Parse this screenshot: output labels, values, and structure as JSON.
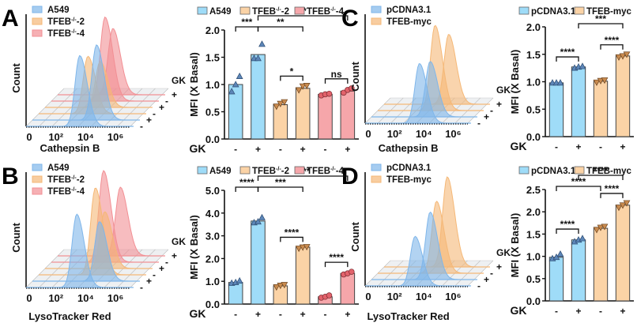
{
  "figure": {
    "panels": [
      "A",
      "B",
      "C",
      "D"
    ]
  },
  "chart_data": [
    {
      "panel": "A",
      "type": "area",
      "subtype": "3d-stacked-flow-histogram",
      "xlabel": "Cathepsin B",
      "ylabel": "Count",
      "x_ticks": [
        "0",
        "10²",
        "10⁴",
        "10⁶"
      ],
      "depth_label": "GK",
      "depth_ticks": [
        "-",
        "+",
        "-",
        "+",
        "-",
        "+"
      ],
      "legend": [
        {
          "name": "A549",
          "color": "#7fb6ea"
        },
        {
          "name": "TFEB-/--2",
          "color": "#f5b877"
        },
        {
          "name": "TFEB-/--4",
          "color": "#f28f94"
        }
      ],
      "traces": [
        {
          "group": "A549",
          "gk": "-",
          "peak_log10": 3.6,
          "height": 0.8
        },
        {
          "group": "A549",
          "gk": "+",
          "peak_log10": 4.3,
          "height": 0.85
        },
        {
          "group": "TFEB-/--2",
          "gk": "-",
          "peak_log10": 3.3,
          "height": 0.65
        },
        {
          "group": "TFEB-/--2",
          "gk": "+",
          "peak_log10": 3.7,
          "height": 0.52
        },
        {
          "group": "TFEB-/--4",
          "gk": "-",
          "peak_log10": 3.6,
          "height": 0.95
        },
        {
          "group": "TFEB-/--4",
          "gk": "+",
          "peak_log10": 3.7,
          "height": 0.75
        }
      ]
    },
    {
      "panel": "A",
      "type": "bar",
      "ylabel": "MFI (X Basal)",
      "xlabel": "GK",
      "categories": [
        "-",
        "+",
        "-",
        "+",
        "-",
        "+"
      ],
      "groups": [
        "A549",
        "A549",
        "TFEB-/--2",
        "TFEB-/--2",
        "TFEB-/--4",
        "TFEB-/--4"
      ],
      "values": [
        1.0,
        1.55,
        0.63,
        0.93,
        0.82,
        0.88
      ],
      "points": [
        [
          0.87,
          1.0,
          1.15
        ],
        [
          1.48,
          1.48,
          1.74
        ],
        [
          0.6,
          0.65,
          0.68
        ],
        [
          0.9,
          0.97,
          0.98
        ],
        [
          0.8,
          0.82,
          0.83
        ],
        [
          0.85,
          0.9,
          0.93
        ]
      ],
      "markers": [
        "triangle-up",
        "triangle-up",
        "triangle-down",
        "triangle-down",
        "circle",
        "circle"
      ],
      "ylim": [
        0,
        2.0
      ],
      "y_ticks": [
        "0.0",
        "0.5",
        "1.0",
        "1.5",
        "2.0"
      ],
      "legend": [
        {
          "name": "A549",
          "color": "#9fdcf8"
        },
        {
          "name": "TFEB-/--2",
          "color": "#fbd3a6"
        },
        {
          "name": "TFEB-/--4",
          "color": "#f6a6aa"
        }
      ],
      "significance": [
        {
          "from": 0,
          "to": 1,
          "label": "***",
          "level": 1
        },
        {
          "from": 1,
          "to": 3,
          "label": "**",
          "level": 1
        },
        {
          "from": 1,
          "to": 5,
          "label": "**",
          "level": 2
        },
        {
          "from": 2,
          "to": 3,
          "label": "*",
          "level": 0
        },
        {
          "from": 4,
          "to": 5,
          "label": "ns",
          "level": 0
        }
      ]
    },
    {
      "panel": "B",
      "type": "area",
      "subtype": "3d-stacked-flow-histogram",
      "xlabel": "LysoTracker Red",
      "ylabel": "Count",
      "x_ticks": [
        "0",
        "10²",
        "10⁴",
        "10⁶"
      ],
      "depth_label": "GK",
      "depth_ticks": [
        "-",
        "+",
        "-",
        "+",
        "-",
        "+"
      ],
      "legend": [
        {
          "name": "A549",
          "color": "#7fb6ea"
        },
        {
          "name": "TFEB-/--2",
          "color": "#f5b877"
        },
        {
          "name": "TFEB-/--4",
          "color": "#f28f94"
        }
      ],
      "traces": [
        {
          "group": "A549",
          "gk": "-",
          "peak_log10": 3.4,
          "height": 0.8
        },
        {
          "group": "A549",
          "gk": "+",
          "peak_log10": 4.5,
          "height": 0.65
        },
        {
          "group": "TFEB-/--2",
          "gk": "-",
          "peak_log10": 3.8,
          "height": 0.95
        },
        {
          "group": "TFEB-/--2",
          "gk": "+",
          "peak_log10": 4.0,
          "height": 0.62
        },
        {
          "group": "TFEB-/--4",
          "gk": "-",
          "peak_log10": 3.5,
          "height": 1.0
        },
        {
          "group": "TFEB-/--4",
          "gk": "+",
          "peak_log10": 4.2,
          "height": 0.75
        }
      ]
    },
    {
      "panel": "B",
      "type": "bar",
      "ylabel": "MFI (X Basal)",
      "xlabel": "GK",
      "categories": [
        "-",
        "+",
        "-",
        "+",
        "-",
        "+"
      ],
      "groups": [
        "A549",
        "A549",
        "TFEB-/--2",
        "TFEB-/--2",
        "TFEB-/--4",
        "TFEB-/--4"
      ],
      "values": [
        0.95,
        3.65,
        0.8,
        2.5,
        0.32,
        1.35
      ],
      "points": [
        [
          0.92,
          0.95,
          1.02
        ],
        [
          3.58,
          3.62,
          3.8
        ],
        [
          0.75,
          0.82,
          0.85
        ],
        [
          2.45,
          2.5,
          2.52
        ],
        [
          0.28,
          0.32,
          0.38
        ],
        [
          1.3,
          1.35,
          1.42
        ]
      ],
      "markers": [
        "triangle-up",
        "triangle-up",
        "triangle-down",
        "triangle-down",
        "circle",
        "circle"
      ],
      "ylim": [
        0,
        5.0
      ],
      "y_ticks": [
        "0.0",
        "1.0",
        "2.0",
        "3.0",
        "4.0",
        "5.0"
      ],
      "legend": [
        {
          "name": "A549",
          "color": "#9fdcf8"
        },
        {
          "name": "TFEB-/--2",
          "color": "#fbd3a6"
        },
        {
          "name": "TFEB-/--4",
          "color": "#f6a6aa"
        }
      ],
      "significance": [
        {
          "from": 0,
          "to": 1,
          "label": "****",
          "level": 1
        },
        {
          "from": 1,
          "to": 3,
          "label": "***",
          "level": 1
        },
        {
          "from": 1,
          "to": 5,
          "label": "****",
          "level": 2
        },
        {
          "from": 2,
          "to": 3,
          "label": "****",
          "level": 0
        },
        {
          "from": 4,
          "to": 5,
          "label": "****",
          "level": 0
        }
      ]
    },
    {
      "panel": "C",
      "type": "area",
      "subtype": "3d-stacked-flow-histogram",
      "xlabel": "Cathepsin B",
      "ylabel": "Count",
      "x_ticks": [
        "0",
        "10²",
        "10⁴",
        "10⁶"
      ],
      "depth_label": "GK",
      "depth_ticks": [
        "-",
        "+",
        "-",
        "+"
      ],
      "legend": [
        {
          "name": "pCDNA3.1",
          "color": "#7fb6ea"
        },
        {
          "name": "TFEB-myc",
          "color": "#f5b877"
        }
      ],
      "traces": [
        {
          "group": "pCDNA3.1",
          "gk": "-",
          "peak_log10": 3.7,
          "height": 0.7
        },
        {
          "group": "pCDNA3.1",
          "gk": "+",
          "peak_log10": 4.0,
          "height": 0.65
        },
        {
          "group": "TFEB-myc",
          "gk": "-",
          "peak_log10": 3.9,
          "height": 1.0
        },
        {
          "group": "TFEB-myc",
          "gk": "+",
          "peak_log10": 4.4,
          "height": 0.82
        }
      ]
    },
    {
      "panel": "C",
      "type": "bar",
      "ylabel": "MFI (X Basal)",
      "xlabel": "GK",
      "categories": [
        "-",
        "+",
        "-",
        "+"
      ],
      "groups": [
        "pCDNA3.1",
        "pCDNA3.1",
        "TFEB-myc",
        "TFEB-myc"
      ],
      "values": [
        0.98,
        1.27,
        1.01,
        1.47
      ],
      "points": [
        [
          0.98,
          0.98,
          0.98
        ],
        [
          1.25,
          1.27,
          1.28
        ],
        [
          0.99,
          1.02,
          1.03
        ],
        [
          1.45,
          1.47,
          1.5
        ]
      ],
      "markers": [
        "triangle-up",
        "triangle-up",
        "triangle-down",
        "triangle-down"
      ],
      "ylim": [
        0,
        2.0
      ],
      "y_ticks": [
        "0.0",
        "0.5",
        "1.0",
        "1.5",
        "2.0"
      ],
      "legend": [
        {
          "name": "pCDNA3.1",
          "color": "#9fdcf8"
        },
        {
          "name": "TFEB-myc",
          "color": "#fbd3a6"
        }
      ],
      "significance": [
        {
          "from": 0,
          "to": 1,
          "label": "****",
          "level": 0
        },
        {
          "from": 2,
          "to": 3,
          "label": "****",
          "level": 0
        },
        {
          "from": 1,
          "to": 3,
          "label": "***",
          "level": 1
        }
      ]
    },
    {
      "panel": "D",
      "type": "area",
      "subtype": "3d-stacked-flow-histogram",
      "xlabel": "LysoTracker Red",
      "ylabel": "Count",
      "x_ticks": [
        "0",
        "10²",
        "10⁴",
        "10⁶"
      ],
      "depth_label": "GK",
      "depth_ticks": [
        "-",
        "+",
        "-",
        "+"
      ],
      "legend": [
        {
          "name": "pCDNA3.1",
          "color": "#7fb6ea"
        },
        {
          "name": "TFEB-myc",
          "color": "#f5b877"
        }
      ],
      "traces": [
        {
          "group": "pCDNA3.1",
          "gk": "-",
          "peak_log10": 3.4,
          "height": 0.55
        },
        {
          "group": "pCDNA3.1",
          "gk": "+",
          "peak_log10": 4.0,
          "height": 0.75
        },
        {
          "group": "TFEB-myc",
          "gk": "-",
          "peak_log10": 4.0,
          "height": 0.8
        },
        {
          "group": "TFEB-myc",
          "gk": "+",
          "peak_log10": 4.3,
          "height": 1.0
        }
      ]
    },
    {
      "panel": "D",
      "type": "bar",
      "ylabel": "MFI (X Basal)",
      "xlabel": "GK",
      "categories": [
        "-",
        "+",
        "-",
        "+"
      ],
      "groups": [
        "pCDNA3.1",
        "pCDNA3.1",
        "TFEB-myc",
        "TFEB-myc"
      ],
      "values": [
        0.98,
        1.37,
        1.63,
        2.15
      ],
      "points": [
        [
          0.95,
          0.98,
          1.05
        ],
        [
          1.33,
          1.37,
          1.4
        ],
        [
          1.6,
          1.65,
          1.67
        ],
        [
          2.1,
          2.15,
          2.2
        ]
      ],
      "markers": [
        "triangle-up",
        "triangle-up",
        "triangle-down",
        "triangle-down"
      ],
      "ylim": [
        0,
        2.5
      ],
      "y_ticks": [
        "0.0",
        "0.5",
        "1.0",
        "1.5",
        "2.0",
        "2.5"
      ],
      "legend": [
        {
          "name": "pCDNA3.1",
          "color": "#9fdcf8"
        },
        {
          "name": "TFEB-myc",
          "color": "#fbd3a6"
        }
      ],
      "significance": [
        {
          "from": 0,
          "to": 1,
          "label": "****",
          "level": 0
        },
        {
          "from": 0,
          "to": 2,
          "label": "****",
          "level": 1
        },
        {
          "from": 2,
          "to": 3,
          "label": "****",
          "level": 0
        },
        {
          "from": 1,
          "to": 3,
          "label": "****",
          "level": 2
        }
      ]
    }
  ],
  "colors": {
    "axis": "#111111",
    "bar_edge": "#444444",
    "marker_blue": "#5d86b8",
    "marker_orange": "#c98b4f",
    "marker_red": "#e2626b",
    "grid_blue": "#7fb6ea",
    "grid_orange": "#f5b877",
    "grid_red": "#f28f94",
    "grid_gray": "#c8c8c8"
  }
}
